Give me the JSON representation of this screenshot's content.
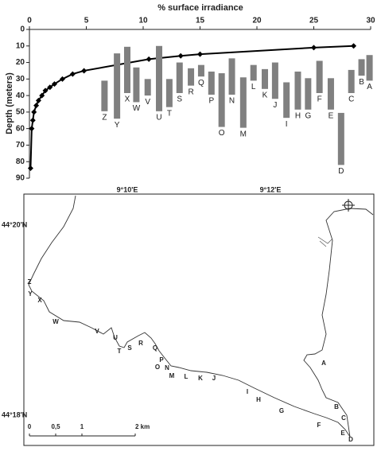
{
  "chart_data": {
    "type": "combo",
    "xlabel": "% surface irradiance",
    "ylabel": "Depth (meters)",
    "xlim": [
      0,
      30
    ],
    "xticks": [
      0,
      5,
      10,
      15,
      20,
      25,
      30
    ],
    "ylim": [
      0,
      90
    ],
    "yticks": [
      0,
      10,
      20,
      30,
      40,
      50,
      60,
      70,
      80,
      90
    ],
    "y_inverted": true,
    "x_axis_top": true,
    "series": [
      {
        "type": "line",
        "color": "#000000",
        "x": [
          28.5,
          25,
          15,
          13.3,
          10.5,
          4.8,
          3.8,
          2.9,
          2.2,
          1.8,
          1.4,
          1.1,
          0.8,
          0.6,
          0.4,
          0.3,
          0.2,
          0.1
        ],
        "values": [
          10,
          11,
          15,
          16,
          18,
          25,
          27,
          30,
          33,
          35,
          37,
          40,
          43,
          46,
          50,
          55,
          60,
          84
        ]
      },
      {
        "type": "range",
        "color": "#808080",
        "labels": [
          "Z",
          "Y",
          "X",
          "W",
          "V",
          "U",
          "T",
          "S",
          "R",
          "Q",
          "P",
          "O",
          "N",
          "M",
          "L",
          "K",
          "J",
          "I",
          "H",
          "G",
          "F",
          "E",
          "D",
          "C",
          "B",
          "A"
        ],
        "x": [
          6.6,
          7.7,
          8.6,
          9.4,
          10.4,
          11.4,
          12.3,
          13.2,
          14.2,
          15.1,
          16.0,
          16.9,
          17.8,
          18.8,
          19.7,
          20.7,
          21.6,
          22.6,
          23.6,
          24.5,
          25.5,
          26.5,
          27.4,
          28.3,
          29.2,
          29.9
        ],
        "low": [
          31,
          14.5,
          10.5,
          23,
          30,
          10,
          30,
          20,
          23.5,
          21.5,
          25.5,
          26.5,
          17.5,
          29,
          21.5,
          24,
          20,
          32,
          25.5,
          29.5,
          19,
          29.5,
          50.5,
          24.5,
          18,
          15.5
        ],
        "high": [
          49.5,
          54,
          38.5,
          44,
          40,
          49.5,
          47,
          38.5,
          34,
          28.5,
          39.5,
          59,
          39.5,
          59.5,
          31,
          36,
          42,
          53.5,
          48.5,
          48.5,
          38.5,
          48.5,
          82,
          38.5,
          28,
          31
        ]
      }
    ]
  },
  "map": {
    "lon_labels": [
      "9°10'E",
      "9°12'E"
    ],
    "lat_labels": [
      "44°20'N",
      "44°18'N"
    ],
    "scale_labels": [
      "0",
      "0,5",
      "1",
      "2 km"
    ],
    "stations": [
      "Z",
      "Y",
      "X",
      "W",
      "V",
      "U",
      "T",
      "S",
      "R",
      "Q",
      "P",
      "O",
      "N",
      "M",
      "L",
      "K",
      "J",
      "I",
      "H",
      "G",
      "F",
      "E",
      "D",
      "C",
      "B",
      "A"
    ]
  }
}
